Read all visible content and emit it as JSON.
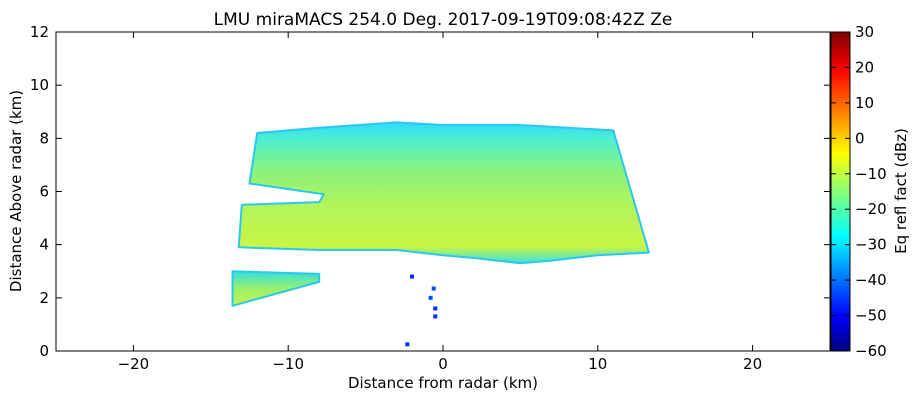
{
  "chart_data": {
    "type": "heatmap",
    "title": "LMU miraMACS 254.0 Deg. 2017-09-19T09:08:42Z  Ze",
    "xlabel": "Distance from radar (km)",
    "ylabel": "Distance Above radar  (km)",
    "xlim": [
      -25,
      25
    ],
    "ylim": [
      0,
      12
    ],
    "x_ticks": [
      -20,
      -10,
      0,
      10,
      20
    ],
    "y_ticks": [
      0,
      2,
      4,
      6,
      8,
      10,
      12
    ],
    "x_tick_labels": [
      "−20",
      "−10",
      "0",
      "10",
      "20"
    ],
    "y_tick_labels": [
      "0",
      "2",
      "4",
      "6",
      "8",
      "10",
      "12"
    ],
    "grid": false,
    "colorbar": {
      "label": "Eq refl fact (dBz)",
      "range": [
        -60,
        30
      ],
      "ticks": [
        -60,
        -50,
        -40,
        -30,
        -20,
        -10,
        0,
        10,
        20,
        30
      ],
      "tick_labels": [
        "−60",
        "−50",
        "−40",
        "−30",
        "−20",
        "−10",
        "0",
        "10",
        "20",
        "30"
      ],
      "colormap": "jet"
    },
    "regions": [
      {
        "region": "main cloud layer",
        "outline": [
          [
            -12.0,
            8.2
          ],
          [
            -8.0,
            8.4
          ],
          [
            -3.0,
            8.6
          ],
          [
            0.0,
            8.5
          ],
          [
            5.0,
            8.5
          ],
          [
            11.0,
            8.3
          ],
          [
            13.3,
            3.7
          ],
          [
            10.0,
            3.6
          ],
          [
            7.0,
            3.4
          ],
          [
            5.0,
            3.3
          ],
          [
            2.0,
            3.5
          ],
          [
            0.0,
            3.6
          ],
          [
            -3.0,
            3.8
          ],
          [
            -8.0,
            3.8
          ],
          [
            -13.2,
            3.9
          ],
          [
            -13.0,
            5.5
          ],
          [
            -8.0,
            5.6
          ],
          [
            -7.7,
            5.9
          ],
          [
            -12.5,
            6.3
          ]
        ],
        "fill": "reflectivity_field",
        "value_min": -35,
        "value_max": -12
      },
      {
        "region": "lower cloud fragment",
        "outline": [
          [
            -13.6,
            3.0
          ],
          [
            -8.0,
            2.9
          ],
          [
            -8.0,
            2.6
          ],
          [
            -13.6,
            1.7
          ]
        ],
        "fill": "reflectivity_field",
        "value_min": -30,
        "value_max": -12
      },
      {
        "region": "echo",
        "x": -0.6,
        "y": 2.35,
        "value": -42
      },
      {
        "region": "echo",
        "x": -0.8,
        "y": 2.0,
        "value": -42
      },
      {
        "region": "echo",
        "x": -0.5,
        "y": 1.6,
        "value": -45
      },
      {
        "region": "echo",
        "x": -0.5,
        "y": 1.3,
        "value": -45
      },
      {
        "region": "echo",
        "x": -2.3,
        "y": 0.25,
        "value": -45
      },
      {
        "region": "echo",
        "x": -2.0,
        "y": 2.8,
        "value": -45
      }
    ]
  }
}
